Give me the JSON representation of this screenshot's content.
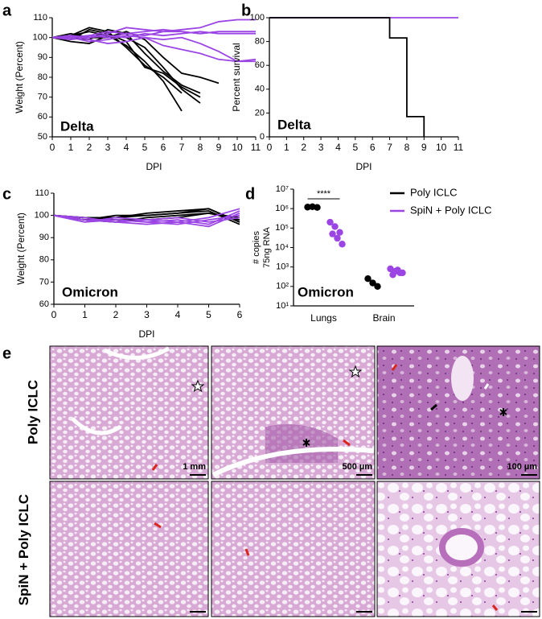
{
  "chart_data": [
    {
      "type": "line",
      "panel_label": "a",
      "annotation": "Delta",
      "xlabel": "DPI",
      "ylabel": "Weight (Percent)",
      "x": [
        0,
        1,
        2,
        3,
        4,
        5,
        6,
        7,
        8,
        9,
        10,
        11
      ],
      "xlim": [
        0,
        11
      ],
      "xticks": [
        0,
        1,
        2,
        3,
        4,
        5,
        6,
        7,
        8,
        9,
        10,
        11
      ],
      "ylim": [
        50,
        110
      ],
      "yticks": [
        50,
        60,
        70,
        80,
        90,
        100,
        110
      ],
      "series": [
        {
          "color": "#000000",
          "values": [
            100,
            101,
            103,
            101,
            96,
            88,
            78,
            63,
            null,
            null,
            null,
            null
          ]
        },
        {
          "color": "#000000",
          "values": [
            100,
            100,
            99,
            104,
            102,
            92,
            83,
            76,
            72,
            null,
            null,
            null
          ]
        },
        {
          "color": "#000000",
          "values": [
            100,
            98,
            97,
            101,
            100,
            95,
            85,
            74,
            67,
            null,
            null,
            null
          ]
        },
        {
          "color": "#000000",
          "values": [
            100,
            99,
            104,
            102,
            98,
            85,
            82,
            75,
            70,
            null,
            null,
            null
          ]
        },
        {
          "color": "#000000",
          "values": [
            100,
            102,
            100,
            100,
            103,
            99,
            90,
            82,
            80,
            77,
            null,
            null
          ]
        },
        {
          "color": "#000000",
          "values": [
            100,
            101,
            105,
            103,
            95,
            86,
            80,
            72,
            null,
            null,
            null,
            null
          ]
        },
        {
          "color": "#9b45e4",
          "values": [
            100,
            101,
            100,
            102,
            105,
            104,
            103,
            104,
            105,
            108,
            109,
            109
          ]
        },
        {
          "color": "#9b45e4",
          "values": [
            100,
            100,
            101,
            103,
            102,
            101,
            103,
            103,
            102,
            103,
            103,
            103
          ]
        },
        {
          "color": "#9b45e4",
          "values": [
            100,
            99,
            100,
            101,
            100,
            102,
            101,
            102,
            103,
            102,
            102,
            102
          ]
        },
        {
          "color": "#9b45e4",
          "values": [
            100,
            100,
            98,
            99,
            101,
            100,
            99,
            100,
            97,
            93,
            88,
            88
          ]
        },
        {
          "color": "#9b45e4",
          "values": [
            100,
            101,
            99,
            97,
            98,
            100,
            96,
            94,
            92,
            89,
            88,
            89
          ]
        },
        {
          "color": "#9b45e4",
          "values": [
            100,
            100,
            101,
            100,
            102,
            103,
            104,
            103,
            102,
            103,
            103,
            103
          ]
        }
      ]
    },
    {
      "type": "step",
      "panel_label": "b",
      "annotation": "Delta",
      "xlabel": "DPI",
      "ylabel": "Percent survival",
      "x": [
        0,
        1,
        2,
        3,
        4,
        5,
        6,
        7,
        8,
        9,
        10,
        11
      ],
      "xlim": [
        0,
        11
      ],
      "xticks": [
        0,
        1,
        2,
        3,
        4,
        5,
        6,
        7,
        8,
        9,
        10,
        11
      ],
      "ylim": [
        0,
        100
      ],
      "yticks": [
        0,
        20,
        40,
        60,
        80,
        100
      ],
      "series": [
        {
          "color": "#9b45e4",
          "values": [
            100,
            100,
            100,
            100,
            100,
            100,
            100,
            100,
            100,
            100,
            100,
            100
          ]
        },
        {
          "color": "#000000",
          "values": [
            100,
            100,
            100,
            100,
            100,
            100,
            100,
            83,
            17,
            0,
            null,
            null
          ]
        }
      ]
    },
    {
      "type": "line",
      "panel_label": "c",
      "annotation": "Omicron",
      "xlabel": "DPI",
      "ylabel": "Weight (Percent)",
      "x": [
        0,
        1,
        2,
        3,
        4,
        5,
        6
      ],
      "xlim": [
        0,
        6
      ],
      "xticks": [
        0,
        1,
        2,
        3,
        4,
        5,
        6
      ],
      "ylim": [
        60,
        110
      ],
      "yticks": [
        60,
        70,
        80,
        90,
        100,
        110
      ],
      "series": [
        {
          "color": "#000000",
          "values": [
            100,
            99,
            99,
            101,
            102,
            103,
            97
          ]
        },
        {
          "color": "#000000",
          "values": [
            100,
            98,
            100,
            100,
            101,
            102,
            96
          ]
        },
        {
          "color": "#000000",
          "values": [
            100,
            98,
            97,
            99,
            100,
            101,
            98
          ]
        },
        {
          "color": "#000000",
          "values": [
            100,
            99,
            98,
            98,
            99,
            101,
            99
          ]
        },
        {
          "color": "#000000",
          "values": [
            100,
            98,
            99,
            100,
            101,
            103,
            97
          ]
        },
        {
          "color": "#9b45e4",
          "values": [
            100,
            97,
            98,
            97,
            98,
            96,
            102
          ]
        },
        {
          "color": "#9b45e4",
          "values": [
            100,
            98,
            97,
            96,
            97,
            99,
            103
          ]
        },
        {
          "color": "#9b45e4",
          "values": [
            100,
            97,
            99,
            98,
            99,
            97,
            99
          ]
        },
        {
          "color": "#9b45e4",
          "values": [
            100,
            99,
            97,
            98,
            97,
            95,
            101
          ]
        },
        {
          "color": "#9b45e4",
          "values": [
            100,
            98,
            98,
            97,
            96,
            98,
            100
          ]
        }
      ]
    },
    {
      "type": "dot",
      "panel_label": "d",
      "annotation": "Omicron",
      "ylabel": [
        "# copies",
        "75ng RNA"
      ],
      "significance": "****",
      "categories": [
        "Lungs",
        "Brain"
      ],
      "log_y": true,
      "ylim": [
        10,
        10000000
      ],
      "yticks": [
        {
          "value": 10,
          "label": "10¹"
        },
        {
          "value": 100,
          "label": "10²"
        },
        {
          "value": 1000,
          "label": "10³"
        },
        {
          "value": 10000,
          "label": "10⁴"
        },
        {
          "value": 100000,
          "label": "10⁵"
        },
        {
          "value": 1000000,
          "label": "10⁶"
        },
        {
          "value": 10000000,
          "label": "10⁷"
        }
      ],
      "series": [
        {
          "name": "Poly ICLC",
          "color": "#000000",
          "values": [
            [
              1200000,
              1250000,
              1150000
            ],
            [
              250,
              150,
              100
            ]
          ]
        },
        {
          "name": "SpiN + Poly ICLC",
          "color": "#9b45e4",
          "values": [
            [
              200000,
              120000,
              60000,
              50000,
              30000,
              15000
            ],
            [
              800,
              600,
              500,
              400,
              700,
              500
            ]
          ]
        }
      ]
    }
  ],
  "panel_e": {
    "label": "e",
    "rows": [
      "Poly ICLC",
      "SpiN + Poly ICLC"
    ],
    "scale_bars": [
      "1 mm",
      "500 µm",
      "100 µm"
    ]
  }
}
